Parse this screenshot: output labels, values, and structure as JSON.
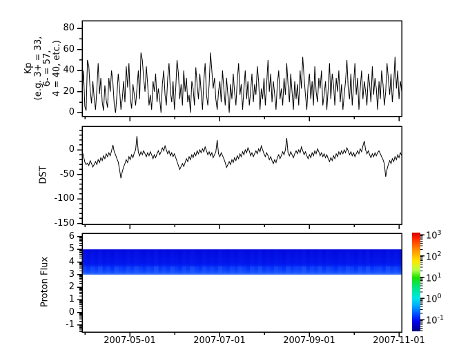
{
  "figure": {
    "background": "#ffffff",
    "line_color": "#000000"
  },
  "xaxis": {
    "major_labels": [
      "2007-05-01",
      "2007-07-01",
      "2007-09-01",
      "2007-11-01"
    ]
  },
  "chart_data": [
    {
      "type": "line",
      "name": "kp-index",
      "ylabel_lines": [
        "Kp",
        "(e.g. 3+ = 33,",
        "6- = 57,",
        "4 = 40, etc.)"
      ],
      "yticks": [
        0,
        20,
        40,
        60,
        80
      ],
      "minor_step": 10,
      "ylim": [
        -3.3,
        87.2
      ],
      "line_color": "#000000",
      "values": [
        18,
        40,
        6,
        2,
        50,
        44,
        22,
        9,
        30,
        14,
        3,
        22,
        47,
        18,
        33,
        10,
        2,
        26,
        12,
        5,
        33,
        20,
        40,
        28,
        8,
        0,
        17,
        37,
        23,
        3,
        13,
        30,
        10,
        44,
        24,
        47,
        14,
        4,
        27,
        17,
        7,
        23,
        40,
        13,
        57,
        50,
        33,
        20,
        44,
        27,
        7,
        17,
        3,
        30,
        20,
        37,
        10,
        23,
        13,
        0,
        27,
        40,
        17,
        7,
        33,
        47,
        20,
        10,
        30,
        3,
        23,
        50,
        37,
        13,
        27,
        7,
        40,
        20,
        33,
        10,
        17,
        0,
        30,
        23,
        7,
        43,
        27,
        13,
        37,
        20,
        3,
        30,
        47,
        17,
        7,
        27,
        57,
        40,
        23,
        33,
        13,
        3,
        20,
        30,
        10,
        40,
        23,
        7,
        33,
        17,
        0,
        27,
        13,
        37,
        20,
        7,
        30,
        47,
        17,
        27,
        3,
        23,
        40,
        13,
        30,
        7,
        20,
        37,
        10,
        27,
        17,
        44,
        30,
        3,
        23,
        13,
        33,
        7,
        27,
        50,
        20,
        37,
        10,
        30,
        17,
        3,
        27,
        40,
        13,
        23,
        7,
        33,
        17,
        47,
        27,
        10,
        37,
        20,
        3,
        30,
        13,
        27,
        7,
        40,
        23,
        53,
        33,
        17,
        3,
        27,
        37,
        13,
        30,
        7,
        44,
        20,
        10,
        33,
        23,
        40,
        7,
        17,
        30,
        3,
        23,
        47,
        13,
        37,
        27,
        7,
        33,
        20,
        40,
        10,
        27,
        3,
        17,
        30,
        50,
        23,
        13,
        37,
        7,
        27,
        47,
        17,
        33,
        3,
        23,
        40,
        13,
        30,
        20,
        7,
        37,
        27,
        10,
        44,
        17,
        33,
        23,
        3,
        30,
        13,
        40,
        27,
        7,
        20,
        47,
        33,
        17,
        37,
        10,
        27,
        53,
        23,
        40,
        13,
        30,
        20
      ]
    },
    {
      "type": "line",
      "name": "dst",
      "ylabel": "DST",
      "yticks": [
        0,
        -50,
        -100,
        -150
      ],
      "minor_step": 10,
      "ylim": [
        -152,
        48
      ],
      "line_color": "#000000",
      "values": [
        -3,
        -12,
        -25,
        -30,
        -27,
        -32,
        -22,
        -28,
        -35,
        -30,
        -24,
        -30,
        -20,
        -26,
        -16,
        -22,
        -12,
        -18,
        -8,
        -14,
        -6,
        -12,
        -2,
        10,
        -4,
        -10,
        -18,
        -25,
        -40,
        -58,
        -45,
        -35,
        -28,
        -20,
        -26,
        -14,
        -20,
        -10,
        -16,
        -6,
        0,
        28,
        -5,
        -12,
        -4,
        -10,
        -2,
        -8,
        -14,
        -6,
        -12,
        -4,
        -10,
        -18,
        -10,
        -16,
        -8,
        -2,
        -10,
        -4,
        4,
        -2,
        8,
        0,
        -8,
        -2,
        -12,
        -6,
        -14,
        -8,
        -16,
        -24,
        -32,
        -40,
        -34,
        -28,
        -34,
        -26,
        -18,
        -24,
        -14,
        -20,
        -10,
        -16,
        -6,
        -12,
        -2,
        -8,
        0,
        -6,
        2,
        -4,
        6,
        -2,
        -10,
        -4,
        -12,
        -6,
        -16,
        -10,
        -4,
        20,
        -8,
        -14,
        -6,
        -12,
        -18,
        -26,
        -36,
        -30,
        -24,
        -30,
        -20,
        -26,
        -16,
        -22,
        -12,
        -18,
        -8,
        -14,
        -4,
        -10,
        0,
        -6,
        4,
        -2,
        -12,
        -6,
        -14,
        -8,
        -2,
        -8,
        2,
        -4,
        8,
        0,
        -8,
        -14,
        -6,
        -12,
        -20,
        -14,
        -22,
        -28,
        -20,
        -26,
        -16,
        -10,
        -18,
        -12,
        -4,
        -10,
        0,
        24,
        -6,
        -12,
        -4,
        -10,
        -16,
        -8,
        -2,
        -8,
        0,
        -6,
        6,
        -2,
        -10,
        -4,
        -12,
        -18,
        -10,
        -16,
        -6,
        -12,
        -2,
        -8,
        2,
        -4,
        -12,
        -6,
        -14,
        -8,
        -16,
        -10,
        -18,
        -24,
        -16,
        -22,
        -12,
        -18,
        -8,
        -14,
        -4,
        -10,
        -2,
        -8,
        0,
        -6,
        4,
        -2,
        -10,
        -4,
        -12,
        -6,
        -14,
        -8,
        -2,
        -8,
        2,
        -4,
        8,
        18,
        0,
        -8,
        -2,
        -10,
        -16,
        -8,
        -14,
        -6,
        -12,
        -6,
        -2,
        -8,
        -14,
        -20,
        -28,
        -55,
        -40,
        -30,
        -22,
        -28,
        -18,
        -24,
        -14,
        -20,
        -10,
        -16,
        -6,
        -12
      ]
    },
    {
      "type": "heatmap",
      "name": "proton-flux",
      "ylabel": "Proton Flux",
      "yticks": [
        -1,
        0,
        1,
        2,
        3,
        4,
        5,
        6
      ],
      "ylim": [
        -1.55,
        6.27
      ],
      "scale": "log-decades",
      "band": {
        "y_from": 3,
        "y_to": 5,
        "gradient": [
          {
            "p": 0.0,
            "c": "#0007dd"
          },
          {
            "p": 0.55,
            "c": "#0013ec"
          },
          {
            "p": 0.8,
            "c": "#0033ff"
          },
          {
            "p": 1.0,
            "c": "#2157ff"
          }
        ],
        "streak_color": "#2e6bff",
        "bottom_row_color": "#4080ff"
      },
      "streaks": [
        0.55,
        0.2,
        0.75,
        0.4,
        0.9,
        0.3,
        0.6,
        0.15,
        0.8,
        0.45,
        0.25,
        0.7,
        0.35,
        0.85,
        0.5,
        0.2,
        0.65,
        0.4,
        0.95,
        0.3,
        0.6,
        0.25,
        0.8,
        0.45,
        0.15,
        0.7,
        0.35,
        0.9,
        0.5,
        0.2,
        0.75,
        0.4,
        0.6,
        0.3,
        0.85,
        0.45,
        0.25,
        0.65,
        0.35,
        0.8,
        0.5,
        0.15,
        0.7,
        0.4,
        0.9,
        0.3,
        0.55,
        0.25,
        0.75,
        0.45,
        0.2,
        0.8,
        0.35,
        0.6,
        0.5,
        0.95,
        0.3,
        0.65,
        0.4,
        0.85,
        0.25,
        0.7,
        0.45,
        0.15,
        0.6,
        0.35,
        0.8,
        0.5,
        0.2,
        0.75,
        0.4,
        0.9,
        0.3,
        0.55,
        0.65,
        0.25,
        0.85,
        0.45,
        0.7,
        0.35
      ],
      "colorbar": {
        "base": "10",
        "tick_exponents": [
          3,
          2,
          1,
          0,
          -1
        ],
        "vmax_exp": 3.1,
        "vmin_exp": -1.55,
        "gradient": [
          {
            "p": 0.0,
            "c": "#d10000"
          },
          {
            "p": 0.05,
            "c": "#ff1e00"
          },
          {
            "p": 0.17,
            "c": "#ff8c00"
          },
          {
            "p": 0.29,
            "c": "#ffe600"
          },
          {
            "p": 0.38,
            "c": "#b4ff4b"
          },
          {
            "p": 0.455,
            "c": "#1ee000"
          },
          {
            "p": 0.55,
            "c": "#00e67d"
          },
          {
            "p": 0.664,
            "c": "#00e6e6"
          },
          {
            "p": 0.74,
            "c": "#00aaff"
          },
          {
            "p": 0.82,
            "c": "#0055ff"
          },
          {
            "p": 0.9,
            "c": "#0000ee"
          },
          {
            "p": 1.0,
            "c": "#000080"
          }
        ]
      }
    }
  ]
}
